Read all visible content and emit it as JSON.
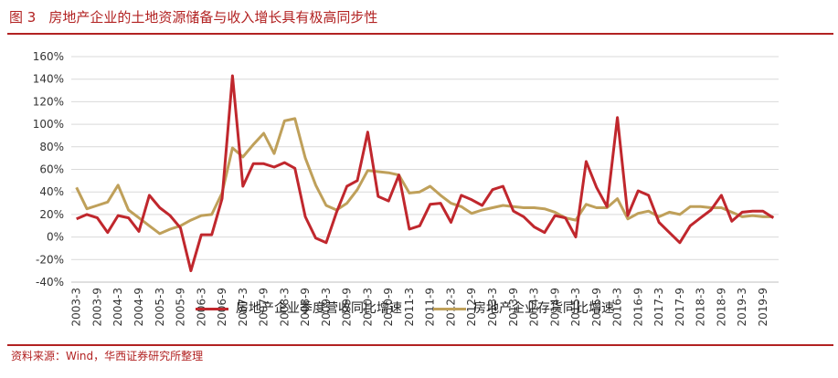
{
  "header": {
    "figure_label": "图 3",
    "title": "房地产企业的土地资源储备与收入增长具有极高同步性"
  },
  "source": "资料来源：Wind，华西证券研究所整理",
  "colors": {
    "accent": "#b22222",
    "revenue": "#c0272d",
    "inventory": "#bfa05a"
  },
  "chart_data": {
    "type": "line",
    "title": "",
    "xlabel": "",
    "ylabel": "",
    "ylim": [
      -40,
      160
    ],
    "y_ticks": [
      "-40%",
      "-20%",
      "0%",
      "20%",
      "40%",
      "60%",
      "80%",
      "100%",
      "120%",
      "140%",
      "160%"
    ],
    "y_tick_values": [
      -40,
      -20,
      0,
      20,
      40,
      60,
      80,
      100,
      120,
      140,
      160
    ],
    "x_tick_labels": [
      "2003-3",
      "2003-9",
      "2004-3",
      "2004-9",
      "2005-3",
      "2005-9",
      "2006-3",
      "2006-9",
      "2007-3",
      "2007-9",
      "2008-3",
      "2008-9",
      "2009-3",
      "2009-9",
      "2010-3",
      "2010-9",
      "2011-3",
      "2011-9",
      "2012-3",
      "2012-9",
      "2013-3",
      "2013-9",
      "2014-3",
      "2014-9",
      "2015-3",
      "2015-9",
      "2016-3",
      "2016-9",
      "2017-3",
      "2017-9",
      "2018-3",
      "2018-9",
      "2019-3",
      "2019-9"
    ],
    "legend_position": "bottom",
    "grid": true,
    "series": [
      {
        "name": "房地产企业季度营收同比增速",
        "values": [
          16,
          20,
          17,
          4,
          19,
          17,
          5,
          37,
          26,
          19,
          8,
          -30,
          2,
          2,
          34,
          143,
          45,
          65,
          65,
          62,
          66,
          61,
          18,
          -1,
          -5,
          22,
          45,
          50,
          93,
          36,
          32,
          55,
          7,
          10,
          29,
          30,
          13,
          37,
          33,
          28,
          42,
          45,
          23,
          18,
          9,
          4,
          19,
          17,
          0,
          67,
          44,
          27,
          106,
          19,
          41,
          37,
          13,
          4,
          -5,
          10,
          17,
          24,
          37,
          14,
          22,
          23,
          23,
          17
        ]
      },
      {
        "name": "房地产企业存货同比增速",
        "values": [
          44,
          25,
          28,
          31,
          46,
          24,
          17,
          10,
          3,
          7,
          10,
          15,
          19,
          20,
          39,
          79,
          71,
          82,
          92,
          74,
          103,
          105,
          70,
          46,
          28,
          24,
          30,
          42,
          59,
          58,
          57,
          55,
          39,
          40,
          45,
          37,
          30,
          27,
          21,
          24,
          26,
          28,
          27,
          26,
          26,
          25,
          22,
          17,
          15,
          29,
          26,
          26,
          34,
          16,
          21,
          23,
          18,
          22,
          20,
          27,
          27,
          26,
          26,
          22,
          18,
          19,
          18,
          18
        ]
      }
    ]
  }
}
